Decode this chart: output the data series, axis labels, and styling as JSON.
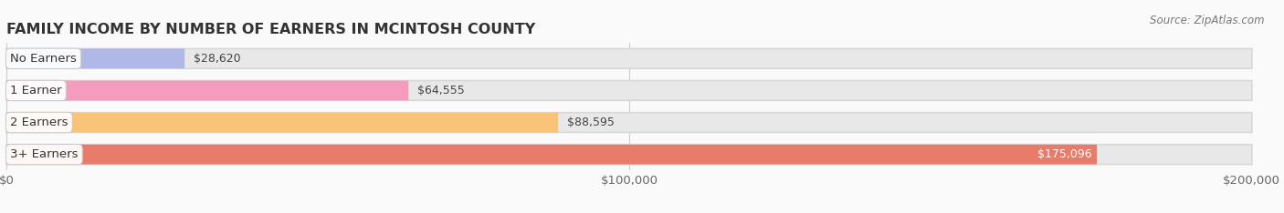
{
  "title": "FAMILY INCOME BY NUMBER OF EARNERS IN MCINTOSH COUNTY",
  "source": "Source: ZipAtlas.com",
  "categories": [
    "No Earners",
    "1 Earner",
    "2 Earners",
    "3+ Earners"
  ],
  "values": [
    28620,
    64555,
    88595,
    175096
  ],
  "bar_colors": [
    "#b0b8e8",
    "#f59bbf",
    "#f9c47a",
    "#e87b6a"
  ],
  "value_labels": [
    "$28,620",
    "$64,555",
    "$88,595",
    "$175,096"
  ],
  "xlim": [
    0,
    200000
  ],
  "xticks": [
    0,
    100000,
    200000
  ],
  "xtick_labels": [
    "$0",
    "$100,000",
    "$200,000"
  ],
  "bg_bar_color": "#e8e8e8",
  "row_bg_color": "#f0f0f0",
  "background_color": "#fafafa",
  "title_fontsize": 11.5,
  "label_fontsize": 9.5,
  "value_fontsize": 9,
  "source_fontsize": 8.5,
  "bar_height": 0.62
}
